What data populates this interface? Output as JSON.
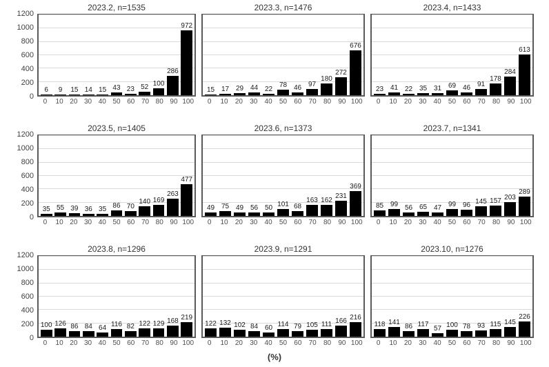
{
  "chart_data": {
    "type": "bar",
    "categories": [
      "0",
      "10",
      "20",
      "30",
      "40",
      "50",
      "60",
      "70",
      "80",
      "90",
      "100"
    ],
    "ylim": [
      0,
      1200
    ],
    "yticks": [
      0,
      200,
      400,
      600,
      800,
      1000,
      1200
    ],
    "xlabel": "(%)",
    "bar_color": "#000000",
    "grid": "horizontal",
    "legend": "none",
    "panels": [
      {
        "title": "2023.2, n=1535",
        "values": [
          6,
          9,
          15,
          14,
          15,
          43,
          23,
          52,
          100,
          286,
          972
        ]
      },
      {
        "title": "2023.3, n=1476",
        "values": [
          15,
          17,
          29,
          44,
          22,
          78,
          46,
          97,
          180,
          272,
          676
        ]
      },
      {
        "title": "2023.4, n=1433",
        "values": [
          23,
          41,
          22,
          35,
          31,
          69,
          46,
          91,
          178,
          284,
          613
        ]
      },
      {
        "title": "2023.5, n=1405",
        "values": [
          35,
          55,
          39,
          36,
          35,
          86,
          70,
          140,
          169,
          263,
          477
        ]
      },
      {
        "title": "2023.6, n=1373",
        "values": [
          49,
          75,
          49,
          56,
          50,
          101,
          68,
          163,
          162,
          231,
          369
        ]
      },
      {
        "title": "2023.7, n=1341",
        "values": [
          85,
          99,
          56,
          65,
          47,
          99,
          96,
          145,
          157,
          203,
          289
        ]
      },
      {
        "title": "2023.8, n=1296",
        "values": [
          100,
          126,
          86,
          84,
          64,
          116,
          82,
          122,
          129,
          168,
          219
        ]
      },
      {
        "title": "2023.9, n=1291",
        "values": [
          122,
          132,
          102,
          84,
          60,
          114,
          79,
          105,
          111,
          166,
          216
        ]
      },
      {
        "title": "2023.10, n=1276",
        "values": [
          118,
          141,
          86,
          117,
          57,
          100,
          78,
          93,
          115,
          145,
          226
        ]
      }
    ]
  }
}
